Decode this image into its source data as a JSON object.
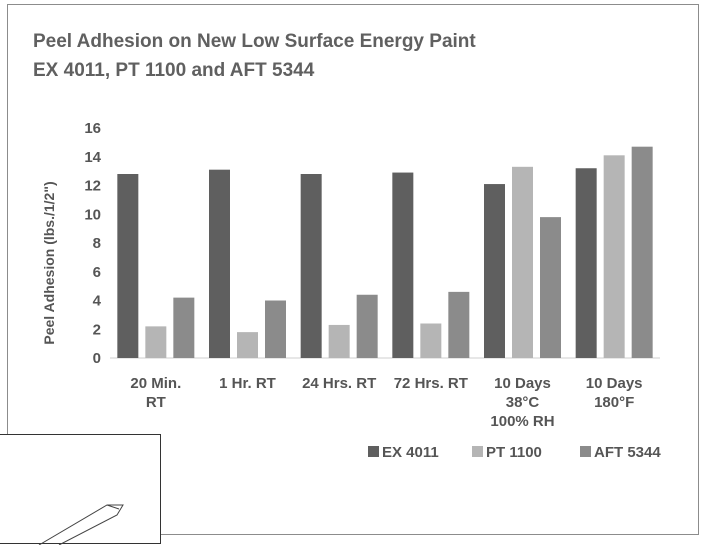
{
  "chart_data": {
    "type": "bar",
    "title_line1": "Peel Adhesion on New Low Surface Energy Paint",
    "title_line2": "EX 4011, PT 1100 and AFT 5344",
    "ylabel": "Peel Adhesion (lbs./1/2\")",
    "ylim": [
      0,
      16
    ],
    "yticks": [
      0,
      2,
      4,
      6,
      8,
      10,
      12,
      14,
      16
    ],
    "grid": false,
    "legend_position": "bottom-right",
    "categories": [
      [
        "20 Min.",
        "RT"
      ],
      [
        "1 Hr. RT"
      ],
      [
        "24 Hrs. RT"
      ],
      [
        "72 Hrs. RT"
      ],
      [
        "10 Days",
        "38°C",
        "100% RH"
      ],
      [
        "10 Days",
        "180°F"
      ]
    ],
    "series": [
      {
        "name": "EX 4011",
        "color": "#5f5f5f",
        "values": [
          12.8,
          13.1,
          12.8,
          12.9,
          12.1,
          13.2
        ]
      },
      {
        "name": "PT 1100",
        "color": "#b5b5b5",
        "values": [
          2.2,
          1.8,
          2.3,
          2.4,
          13.3,
          14.1
        ]
      },
      {
        "name": "AFT 5344",
        "color": "#8b8b8b",
        "values": [
          4.2,
          4.0,
          4.4,
          4.6,
          9.8,
          14.7
        ]
      }
    ]
  }
}
